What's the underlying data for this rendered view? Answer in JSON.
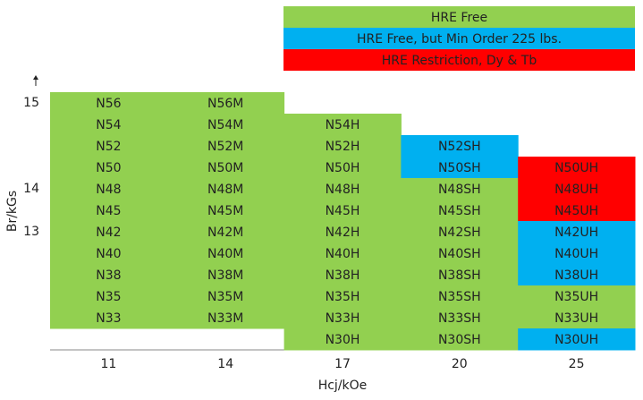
{
  "legend": [
    {
      "label": "HRE Free",
      "color": "#92d050"
    },
    {
      "label": "HRE Free, but Min Order 225 lbs.",
      "color": "#00b0f0"
    },
    {
      "label": "HRE Restriction, Dy & Tb",
      "color": "#ff0000"
    }
  ],
  "x_axis": {
    "title": "Hcj/kOe",
    "labels": [
      "11",
      "14",
      "17",
      "20",
      "25"
    ]
  },
  "y_axis": {
    "title": "Br/kGs"
  },
  "rows": [
    {
      "br": "15",
      "cells": [
        {
          "text": "N56",
          "legend": 0
        },
        {
          "text": "N56M",
          "legend": 0
        },
        null,
        null,
        null
      ]
    },
    {
      "cells": [
        {
          "text": "N54",
          "legend": 0
        },
        {
          "text": "N54M",
          "legend": 0
        },
        {
          "text": "N54H",
          "legend": 0
        },
        null,
        null
      ]
    },
    {
      "cells": [
        {
          "text": "N52",
          "legend": 0
        },
        {
          "text": "N52M",
          "legend": 0
        },
        {
          "text": "N52H",
          "legend": 0
        },
        {
          "text": "N52SH",
          "legend": 1
        },
        null
      ]
    },
    {
      "cells": [
        {
          "text": "N50",
          "legend": 0
        },
        {
          "text": "N50M",
          "legend": 0
        },
        {
          "text": "N50H",
          "legend": 0
        },
        {
          "text": "N50SH",
          "legend": 1
        },
        {
          "text": "N50UH",
          "legend": 2
        }
      ]
    },
    {
      "br": "14",
      "cells": [
        {
          "text": "N48",
          "legend": 0
        },
        {
          "text": "N48M",
          "legend": 0
        },
        {
          "text": "N48H",
          "legend": 0
        },
        {
          "text": "N48SH",
          "legend": 0
        },
        {
          "text": "N48UH",
          "legend": 2
        }
      ]
    },
    {
      "cells": [
        {
          "text": "N45",
          "legend": 0
        },
        {
          "text": "N45M",
          "legend": 0
        },
        {
          "text": "N45H",
          "legend": 0
        },
        {
          "text": "N45SH",
          "legend": 0
        },
        {
          "text": "N45UH",
          "legend": 2
        }
      ]
    },
    {
      "br": "13",
      "cells": [
        {
          "text": "N42",
          "legend": 0
        },
        {
          "text": "N42M",
          "legend": 0
        },
        {
          "text": "N42H",
          "legend": 0
        },
        {
          "text": "N42SH",
          "legend": 0
        },
        {
          "text": "N42UH",
          "legend": 1
        }
      ]
    },
    {
      "cells": [
        {
          "text": "N40",
          "legend": 0
        },
        {
          "text": "N40M",
          "legend": 0
        },
        {
          "text": "N40H",
          "legend": 0
        },
        {
          "text": "N40SH",
          "legend": 0
        },
        {
          "text": "N40UH",
          "legend": 1
        }
      ]
    },
    {
      "cells": [
        {
          "text": "N38",
          "legend": 0
        },
        {
          "text": "N38M",
          "legend": 0
        },
        {
          "text": "N38H",
          "legend": 0
        },
        {
          "text": "N38SH",
          "legend": 0
        },
        {
          "text": "N38UH",
          "legend": 1
        }
      ]
    },
    {
      "cells": [
        {
          "text": "N35",
          "legend": 0
        },
        {
          "text": "N35M",
          "legend": 0
        },
        {
          "text": "N35H",
          "legend": 0
        },
        {
          "text": "N35SH",
          "legend": 0
        },
        {
          "text": "N35UH",
          "legend": 0
        }
      ]
    },
    {
      "cells": [
        {
          "text": "N33",
          "legend": 0
        },
        {
          "text": "N33M",
          "legend": 0
        },
        {
          "text": "N33H",
          "legend": 0
        },
        {
          "text": "N33SH",
          "legend": 0
        },
        {
          "text": "N33UH",
          "legend": 0
        }
      ]
    },
    {
      "cells": [
        null,
        null,
        {
          "text": "N30H",
          "legend": 0
        },
        {
          "text": "N30SH",
          "legend": 0
        },
        {
          "text": "N30UH",
          "legend": 1
        }
      ]
    }
  ]
}
